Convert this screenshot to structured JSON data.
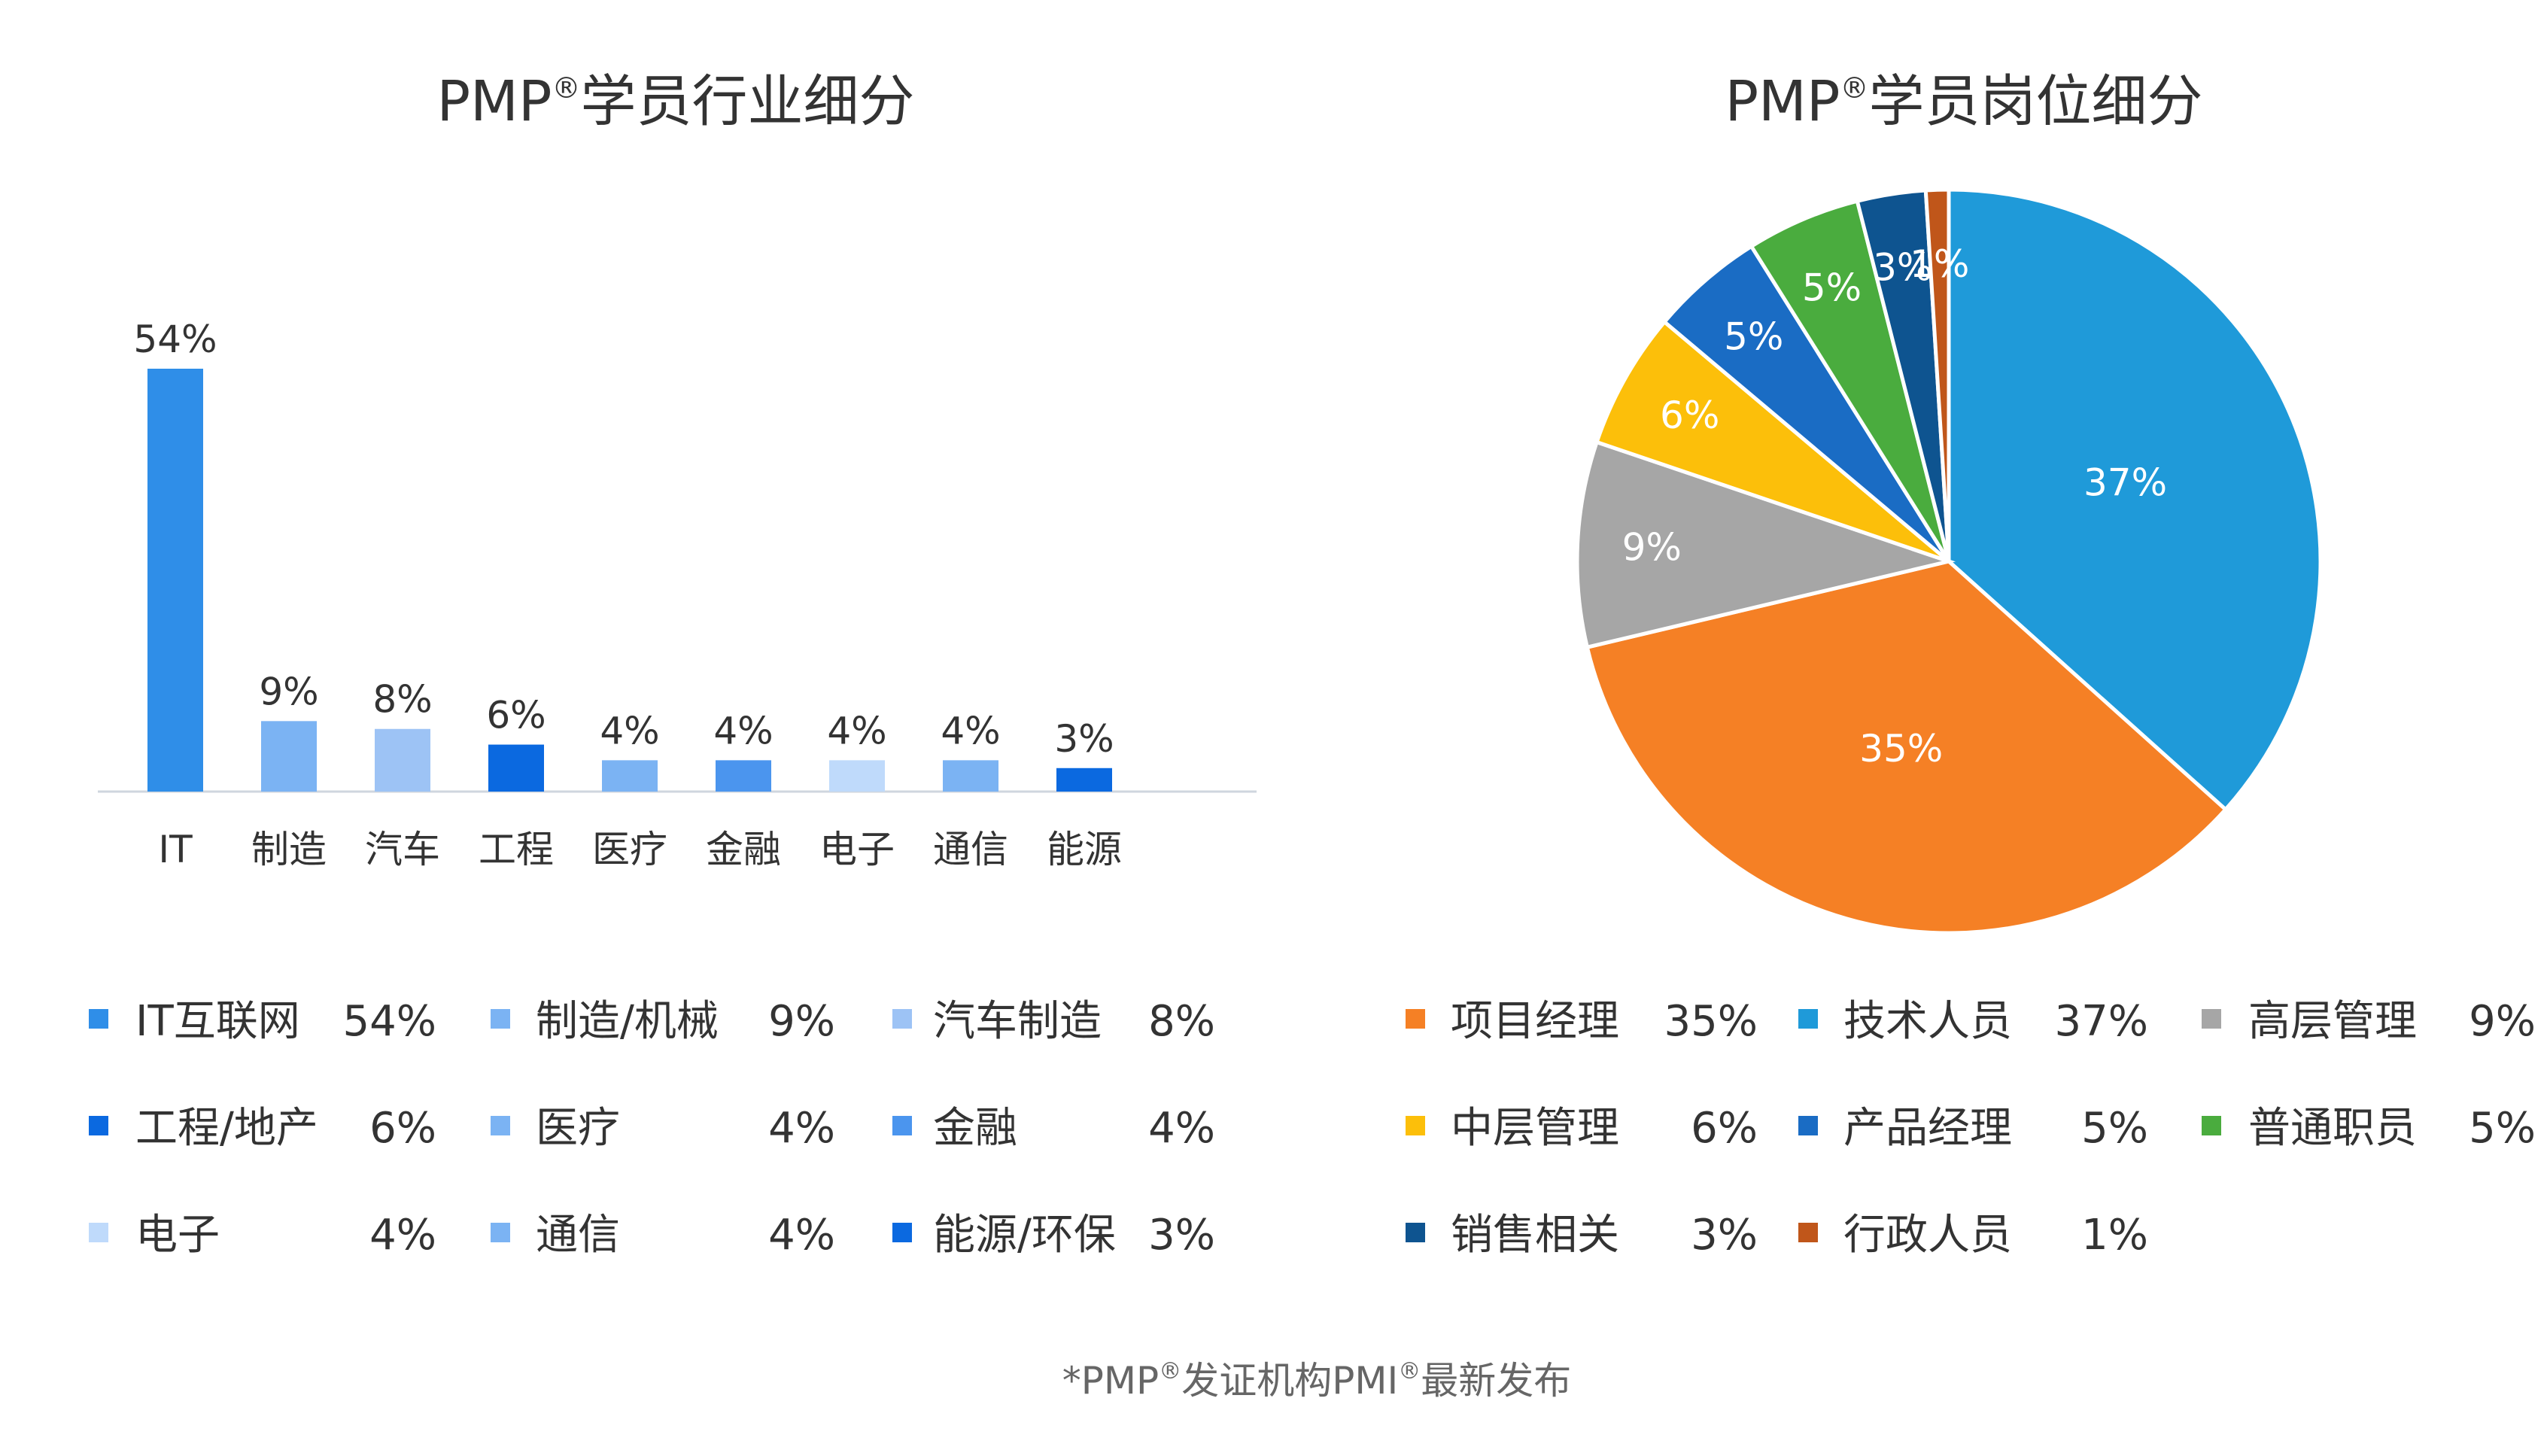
{
  "footnote": {
    "prefix": "*PMP",
    "sup1": "®",
    "middle": "发证机构PMI",
    "sup2": "®",
    "suffix": "最新发布"
  },
  "chart_data": [
    {
      "type": "bar",
      "title": {
        "prefix": "PMP",
        "sup": "®",
        "suffix": "学员行业细分"
      },
      "categories": [
        "IT",
        "制造",
        "汽车",
        "工程",
        "医疗",
        "金融",
        "电子",
        "通信",
        "能源"
      ],
      "values": [
        54,
        9,
        8,
        6,
        4,
        4,
        4,
        4,
        3
      ],
      "value_labels": [
        "54%",
        "9%",
        "8%",
        "6%",
        "4%",
        "4%",
        "4%",
        "4%",
        "3%"
      ],
      "colors": [
        "#2f8ee8",
        "#7bb3f3",
        "#9dc3f5",
        "#0b69e0",
        "#7bb3f3",
        "#4b95ee",
        "#bfdafb",
        "#7bb3f3",
        "#0b69e0"
      ],
      "ylim": [
        0,
        54
      ],
      "grid": false,
      "legend": [
        {
          "label": "IT互联网",
          "value": "54%",
          "color": "#2f8ee8"
        },
        {
          "label": "制造/机械",
          "value": "9%",
          "color": "#7bb3f3"
        },
        {
          "label": "汽车制造",
          "value": "8%",
          "color": "#9dc3f5"
        },
        {
          "label": "工程/地产",
          "value": "6%",
          "color": "#0b69e0"
        },
        {
          "label": "医疗",
          "value": "4%",
          "color": "#7bb3f3"
        },
        {
          "label": "金融",
          "value": "4%",
          "color": "#4b95ee"
        },
        {
          "label": "电子",
          "value": "4%",
          "color": "#bfdafb"
        },
        {
          "label": "通信",
          "value": "4%",
          "color": "#7bb3f3"
        },
        {
          "label": "能源/环保",
          "value": "3%",
          "color": "#0b69e0"
        }
      ],
      "legend_position": "bottom"
    },
    {
      "type": "pie",
      "title": {
        "prefix": "PMP",
        "sup": "®",
        "suffix": "学员岗位细分"
      },
      "slices": [
        {
          "label": "技术人员",
          "value": 37,
          "display": "37%",
          "color": "#1f9ad9"
        },
        {
          "label": "项目经理",
          "value": 35,
          "display": "35%",
          "color": "#f58025"
        },
        {
          "label": "高层管理",
          "value": 9,
          "display": "9%",
          "color": "#a6a6a6"
        },
        {
          "label": "中层管理",
          "value": 6,
          "display": "6%",
          "color": "#fcbf0a"
        },
        {
          "label": "产品经理",
          "value": 5,
          "display": "5%",
          "color": "#1a6cc4"
        },
        {
          "label": "普通职员",
          "value": 5,
          "display": "5%",
          "color": "#4aac3e"
        },
        {
          "label": "销售相关",
          "value": 3,
          "display": "3%",
          "color": "#0e5490"
        },
        {
          "label": "行政人员",
          "value": 1,
          "display": "1%",
          "color": "#c0561a"
        }
      ],
      "legend": [
        {
          "label": "项目经理",
          "value": "35%",
          "color": "#f58025"
        },
        {
          "label": "技术人员",
          "value": "37%",
          "color": "#1f9ad9"
        },
        {
          "label": "高层管理",
          "value": "9%",
          "color": "#a6a6a6"
        },
        {
          "label": "中层管理",
          "value": "6%",
          "color": "#fcbf0a"
        },
        {
          "label": "产品经理",
          "value": "5%",
          "color": "#1a6cc4"
        },
        {
          "label": "普通职员",
          "value": "5%",
          "color": "#4aac3e"
        },
        {
          "label": "销售相关",
          "value": "3%",
          "color": "#0e5490"
        },
        {
          "label": "行政人员",
          "value": "1%",
          "color": "#c0561a"
        }
      ],
      "legend_position": "bottom"
    }
  ]
}
